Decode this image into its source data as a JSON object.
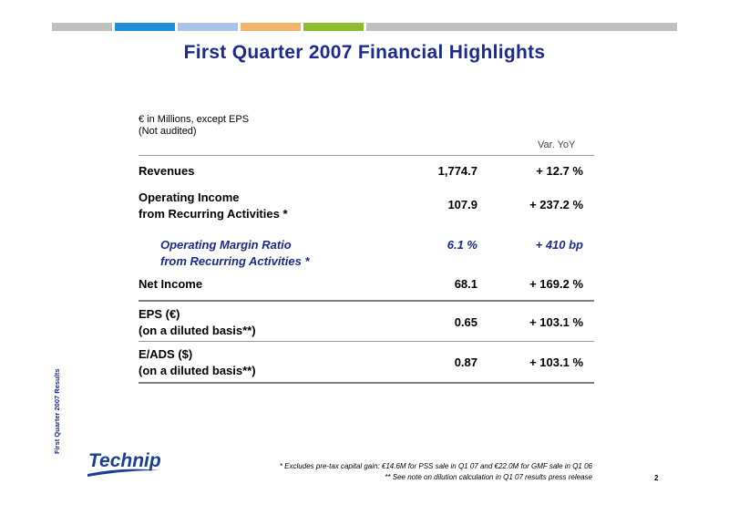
{
  "header": {
    "bar_colors": [
      "#bfbfbf",
      "#1f8fd6",
      "#a9c6ea",
      "#f2b36d",
      "#8dbd2f",
      "#bfbfbf"
    ],
    "title": "First Quarter 2007 Financial Highlights"
  },
  "table": {
    "units_line1": "€ in Millions, except EPS",
    "units_line2": "(Not audited)",
    "var_header": "Var. YoY",
    "rows": [
      {
        "label1": "Revenues",
        "label2": "",
        "value": "1,774.7",
        "variation": "+ 12.7 %"
      },
      {
        "label1": "Operating Income",
        "label2": "from Recurring Activities *",
        "value": "107.9",
        "variation": "+ 237.2 %"
      },
      {
        "label1": "Operating Margin Ratio",
        "label2": "from Recurring Activities *",
        "value": "6.1 %",
        "variation": "+ 410 bp"
      },
      {
        "label1": "Net Income",
        "label2": "",
        "value": "68.1",
        "variation": "+ 169.2 %"
      },
      {
        "label1": "EPS (€)",
        "label2": "(on a diluted basis**)",
        "value": "0.65",
        "variation": "+ 103.1 %"
      },
      {
        "label1": "E/ADS ($)",
        "label2": "(on a diluted basis**)",
        "value": "0.87",
        "variation": "+ 103.1 %"
      }
    ]
  },
  "footer": {
    "side_text": "First Quarter 2007 Results",
    "logo_text": "Technip",
    "note1": "* Excludes pre-tax capital gain: €14.6M for PSS sale in Q1 07 and €22.0M for GMF sale in Q1 06",
    "note2": "** See note on dilution calculation in Q1 07 results press release",
    "page_number": "2"
  }
}
